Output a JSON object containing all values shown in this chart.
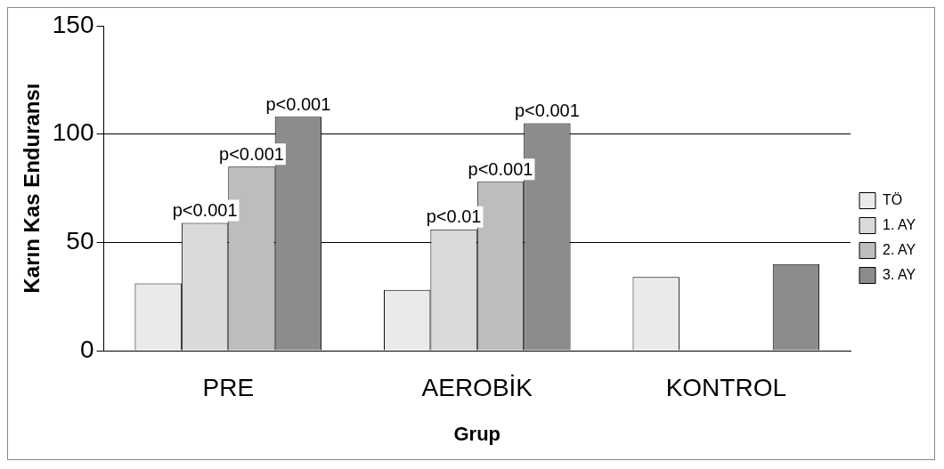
{
  "chart_data": {
    "type": "bar",
    "xlabel": "Grup",
    "ylabel": "Karın Kas Enduransı",
    "categories": [
      "PRE",
      "AEROBİK",
      "KONTROL"
    ],
    "series": [
      {
        "name": "TÖ",
        "color": "#eaeaea",
        "values": [
          31,
          28,
          34
        ]
      },
      {
        "name": "1. AY",
        "color": "#dadada",
        "values": [
          59,
          56,
          null
        ]
      },
      {
        "name": "2. AY",
        "color": "#bdbdbd",
        "values": [
          85,
          78,
          null
        ]
      },
      {
        "name": "3. AY",
        "color": "#8c8c8c",
        "values": [
          108,
          105,
          40
        ]
      }
    ],
    "ylim": [
      0,
      150
    ],
    "yticks": [
      0,
      50,
      100,
      150
    ],
    "grid": "y",
    "legend": "right",
    "annotations": [
      {
        "text": "p<0.001",
        "x": "PRE",
        "y": 59
      },
      {
        "text": "p<0.001",
        "x": "PRE",
        "y": 85
      },
      "p<0.001",
      {
        "text": "p<0.01",
        "x": "AEROBİK",
        "y": 56
      },
      {
        "text": "p<0.001",
        "x": "AEROBİK",
        "y": 78
      },
      "p<0.001"
    ]
  }
}
